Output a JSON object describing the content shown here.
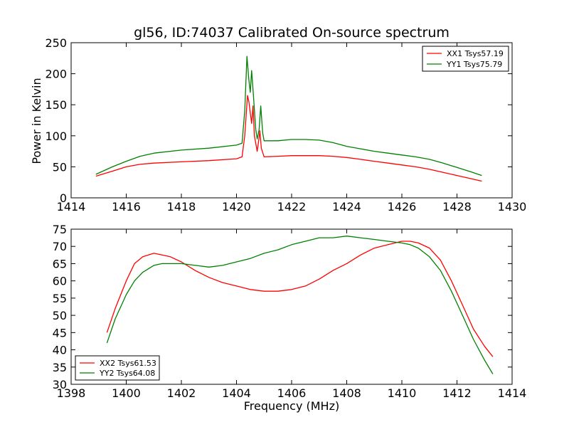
{
  "chart_data": [
    {
      "type": "line",
      "title": "gl56, ID:74037 Calibrated On-source spectrum",
      "xlabel": "",
      "ylabel": "Power in Kelvin",
      "xlim": [
        1414,
        1430
      ],
      "ylim": [
        0,
        250
      ],
      "xticks": [
        1414,
        1416,
        1418,
        1420,
        1422,
        1424,
        1426,
        1428,
        1430
      ],
      "yticks": [
        0,
        50,
        100,
        150,
        200,
        250
      ],
      "legend_position": "top-right",
      "grid": false,
      "series": [
        {
          "name": "XX1 Tsys57.19",
          "color": "#ff0000",
          "x": [
            1414.9,
            1415.5,
            1416.0,
            1416.5,
            1417.0,
            1418.0,
            1419.0,
            1420.0,
            1420.2,
            1420.3,
            1420.4,
            1420.45,
            1420.55,
            1420.6,
            1420.65,
            1420.75,
            1420.8,
            1420.85,
            1420.9,
            1421.0,
            1421.5,
            1422.0,
            1422.5,
            1423.0,
            1423.5,
            1424.0,
            1424.5,
            1425.0,
            1425.5,
            1426.0,
            1426.5,
            1427.0,
            1427.5,
            1428.0,
            1428.5,
            1428.9
          ],
          "values": [
            35,
            43,
            50,
            54,
            56,
            58,
            60,
            63,
            66,
            100,
            165,
            155,
            120,
            148,
            100,
            75,
            90,
            108,
            80,
            66,
            67,
            68,
            68,
            68,
            67,
            65,
            62,
            59,
            56,
            53,
            50,
            46,
            41,
            36,
            31,
            27
          ]
        },
        {
          "name": "YY1 Tsys75.79",
          "color": "#008000",
          "x": [
            1414.9,
            1415.5,
            1416.0,
            1416.5,
            1417.0,
            1418.0,
            1419.0,
            1420.0,
            1420.2,
            1420.3,
            1420.38,
            1420.45,
            1420.5,
            1420.55,
            1420.6,
            1420.7,
            1420.75,
            1420.82,
            1420.88,
            1420.95,
            1421.0,
            1421.5,
            1422.0,
            1422.5,
            1423.0,
            1423.5,
            1424.0,
            1424.5,
            1425.0,
            1425.5,
            1426.0,
            1426.5,
            1427.0,
            1427.5,
            1428.0,
            1428.5,
            1428.9
          ],
          "values": [
            38,
            50,
            59,
            67,
            72,
            77,
            80,
            85,
            88,
            140,
            228,
            190,
            170,
            205,
            175,
            110,
            95,
            110,
            148,
            105,
            92,
            92,
            94,
            94,
            93,
            89,
            83,
            79,
            75,
            72,
            69,
            66,
            62,
            56,
            49,
            42,
            36
          ]
        }
      ]
    },
    {
      "type": "line",
      "title": "",
      "xlabel": "Frequency (MHz)",
      "ylabel": "",
      "xlim": [
        1398,
        1414
      ],
      "ylim": [
        30,
        75
      ],
      "xticks": [
        1398,
        1400,
        1402,
        1404,
        1406,
        1408,
        1410,
        1412,
        1414
      ],
      "yticks": [
        30,
        35,
        40,
        45,
        50,
        55,
        60,
        65,
        70,
        75
      ],
      "legend_position": "bottom-left",
      "grid": false,
      "series": [
        {
          "name": "XX2 Tsys61.53",
          "color": "#ff0000",
          "x": [
            1399.3,
            1399.6,
            1400.0,
            1400.3,
            1400.6,
            1401.0,
            1401.3,
            1401.6,
            1402.0,
            1402.5,
            1403.0,
            1403.5,
            1404.0,
            1404.5,
            1405.0,
            1405.5,
            1406.0,
            1406.5,
            1407.0,
            1407.5,
            1408.0,
            1408.5,
            1409.0,
            1409.5,
            1410.0,
            1410.3,
            1410.6,
            1411.0,
            1411.4,
            1411.8,
            1412.2,
            1412.6,
            1413.0,
            1413.3
          ],
          "values": [
            45,
            52,
            60,
            65,
            67,
            68,
            67.5,
            67,
            65.5,
            63,
            61,
            59.5,
            58.5,
            57.5,
            57,
            57,
            57.5,
            58.5,
            60.5,
            63,
            65,
            67.5,
            69.5,
            70.5,
            71.5,
            71.5,
            71,
            69.5,
            66,
            60,
            53,
            46,
            41,
            38
          ]
        },
        {
          "name": "YY2 Tsys64.08",
          "color": "#008000",
          "x": [
            1399.3,
            1399.6,
            1400.0,
            1400.3,
            1400.6,
            1401.0,
            1401.3,
            1401.6,
            1402.0,
            1402.5,
            1403.0,
            1403.5,
            1404.0,
            1404.5,
            1405.0,
            1405.5,
            1406.0,
            1406.5,
            1407.0,
            1407.5,
            1408.0,
            1408.5,
            1409.0,
            1409.5,
            1410.0,
            1410.3,
            1410.6,
            1411.0,
            1411.4,
            1411.8,
            1412.2,
            1412.6,
            1413.0,
            1413.3
          ],
          "values": [
            42,
            49,
            56,
            60,
            62.5,
            64.5,
            65,
            65,
            65,
            64.5,
            64,
            64.5,
            65.5,
            66.5,
            68,
            69,
            70.5,
            71.5,
            72.5,
            72.5,
            73,
            72.5,
            72,
            71.5,
            71,
            70.5,
            69.5,
            67,
            63,
            57,
            50,
            43,
            37,
            33
          ]
        }
      ]
    }
  ]
}
